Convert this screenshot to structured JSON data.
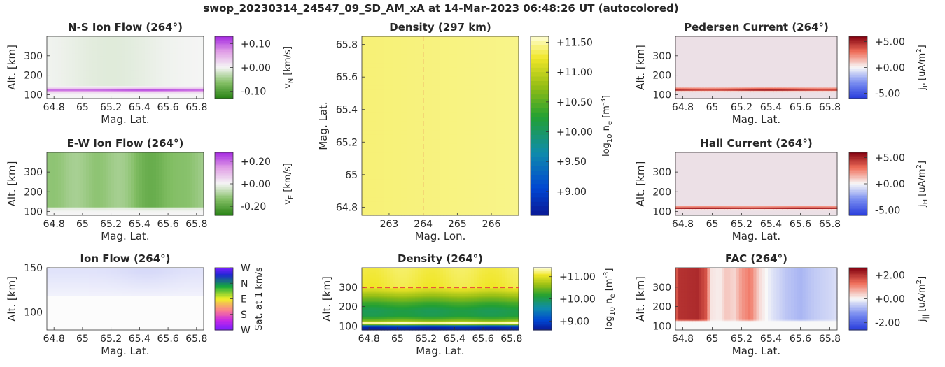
{
  "figure": {
    "suptitle": "swop_20230314_24547_09_SD_AM_xA at 14-Mar-2023 06:48:26 UT (autocolored)"
  },
  "chart_data": [
    {
      "id": "ns-flow",
      "type": "heatmap",
      "title": "N-S Ion Flow (264°)",
      "xlabel": "Mag. Lat.",
      "ylabel": "Alt. [km]",
      "xlim": [
        64.75,
        65.85
      ],
      "ylim": [
        80,
        400
      ],
      "xticks": [
        "64.8",
        "65",
        "65.2",
        "65.4",
        "65.6",
        "65.8"
      ],
      "yticks": [
        "100",
        "200",
        "300"
      ],
      "colormap": "purple-green diverging",
      "colorbar": {
        "label": "v_N [km/s]",
        "clim": [
          -0.13,
          0.13
        ],
        "ticks": [
          "+0.10",
          "+0.00",
          "-0.10"
        ]
      },
      "features": "near-zero flow everywhere, narrow band of +0.10 km/s at 115-130 km"
    },
    {
      "id": "ew-flow",
      "type": "heatmap",
      "title": "E-W Ion Flow (264°)",
      "xlabel": "Mag. Lat.",
      "ylabel": "Alt. [km]",
      "xlim": [
        64.75,
        65.85
      ],
      "ylim": [
        80,
        400
      ],
      "xticks": [
        "64.8",
        "65",
        "65.2",
        "65.4",
        "65.6",
        "65.8"
      ],
      "yticks": [
        "100",
        "200",
        "300"
      ],
      "colormap": "purple-green diverging",
      "colorbar": {
        "label": "v_E [km/s]",
        "clim": [
          -0.28,
          0.28
        ],
        "ticks": [
          "+0.20",
          "+0.00",
          "-0.20"
        ]
      },
      "features": "westward flow about -0.15 km/s above 115 km, strongest near 65.5"
    },
    {
      "id": "ion-flow",
      "type": "heatmap",
      "title": "Ion Flow (264°)",
      "xlabel": "Mag. Lat.",
      "ylabel": "Alt. [km]",
      "xlim": [
        64.75,
        65.85
      ],
      "ylim": [
        80,
        150
      ],
      "xticks": [
        "64.8",
        "65",
        "65.2",
        "65.4",
        "65.6",
        "65.8"
      ],
      "yticks": [
        "100",
        "150"
      ],
      "colormap": "cyclic direction",
      "colorbar": {
        "label": "Sat. at 1 km/s",
        "ticks": [
          "W",
          "N",
          "E",
          "S",
          "W"
        ]
      },
      "features": "faint westward (blue) tint above 120 km, white below"
    },
    {
      "id": "density-map",
      "type": "heatmap",
      "title": "Density (297 km)",
      "xlabel": "Mag. Lon.",
      "ylabel": "Mag. Lat.",
      "xlim": [
        262.2,
        266.8
      ],
      "ylim": [
        64.75,
        65.85
      ],
      "xticks": [
        "263",
        "264",
        "265",
        "266"
      ],
      "yticks": [
        "64.8",
        "65",
        "65.2",
        "65.4",
        "65.6",
        "65.8"
      ],
      "colormap": "parula-like",
      "colorbar": {
        "label": "log_10 n_e [m^-3]",
        "clim": [
          8.6,
          11.6
        ],
        "ticks": [
          "+11.50",
          "+11.00",
          "+10.50",
          "+10.00",
          "+9.50",
          "+9.00"
        ]
      },
      "value": 11.4,
      "cut_line": {
        "axis": "x",
        "value": 264
      }
    },
    {
      "id": "density-profile",
      "type": "heatmap",
      "title": "Density (264°)",
      "xlabel": "Mag. Lat.",
      "ylabel": "Alt. [km]",
      "xlim": [
        64.75,
        65.85
      ],
      "ylim": [
        80,
        400
      ],
      "xticks": [
        "64.8",
        "65",
        "65.2",
        "65.4",
        "65.6",
        "65.8"
      ],
      "yticks": [
        "100",
        "200",
        "300"
      ],
      "colormap": "parula-like",
      "colorbar": {
        "label": "log_10 n_e [m^-3]",
        "clim": [
          8.6,
          11.4
        ],
        "ticks": [
          "+11.00",
          "+10.00",
          "+9.00"
        ]
      },
      "altitude_profile": [
        [
          80,
          8.6
        ],
        [
          95,
          8.8
        ],
        [
          100,
          9.3
        ],
        [
          105,
          10.1
        ],
        [
          115,
          11.4
        ],
        [
          125,
          10.6
        ],
        [
          150,
          10.05
        ],
        [
          180,
          10.0
        ],
        [
          220,
          10.3
        ],
        [
          270,
          10.8
        ],
        [
          300,
          11.1
        ],
        [
          400,
          11.15
        ]
      ],
      "cut_line": {
        "axis": "y",
        "value": 297
      }
    },
    {
      "id": "pedersen",
      "type": "heatmap",
      "title": "Pedersen Current (264°)",
      "xlabel": "Mag. Lat.",
      "ylabel": "Alt. [km]",
      "xlim": [
        64.75,
        65.85
      ],
      "ylim": [
        80,
        400
      ],
      "xticks": [
        "64.8",
        "65",
        "65.2",
        "65.4",
        "65.6",
        "65.8"
      ],
      "yticks": [
        "100",
        "200",
        "300"
      ],
      "colormap": "blue-white-red",
      "colorbar": {
        "label": "j_P [uA/m^2]",
        "clim": [
          -6,
          6
        ],
        "ticks": [
          "+5.00",
          "+0.00",
          "-5.00"
        ]
      },
      "features": "thin positive layer at about 120-130 km"
    },
    {
      "id": "hall",
      "type": "heatmap",
      "title": "Hall Current (264°)",
      "xlabel": "Mag. Lat.",
      "ylabel": "Alt. [km]",
      "xlim": [
        64.75,
        65.85
      ],
      "ylim": [
        80,
        400
      ],
      "xticks": [
        "64.8",
        "65",
        "65.2",
        "65.4",
        "65.6",
        "65.8"
      ],
      "yticks": [
        "100",
        "200",
        "300"
      ],
      "colormap": "blue-white-red",
      "colorbar": {
        "label": "j_H [uA/m^2]",
        "clim": [
          -6,
          6
        ],
        "ticks": [
          "+5.00",
          "+0.00",
          "-5.00"
        ]
      },
      "features": "thin positive layer at about 115-125 km"
    },
    {
      "id": "fac",
      "type": "heatmap",
      "title": "FAC (264°)",
      "xlabel": "Mag. Lat.",
      "ylabel": "Alt. [km]",
      "xlim": [
        64.75,
        65.85
      ],
      "ylim": [
        80,
        400
      ],
      "xticks": [
        "64.8",
        "65",
        "65.2",
        "65.4",
        "65.6",
        "65.8"
      ],
      "yticks": [
        "100",
        "200",
        "300"
      ],
      "colormap": "blue-white-red",
      "colorbar": {
        "label": "j_|| [uA/m^2]",
        "clim": [
          -2.6,
          2.6
        ],
        "ticks": [
          "+2.00",
          "+0.00",
          "-2.00"
        ]
      },
      "latitude_profile": [
        [
          64.75,
          1.2
        ],
        [
          64.77,
          2.0
        ],
        [
          64.9,
          2.1
        ],
        [
          64.96,
          1.6
        ],
        [
          64.99,
          0.2
        ],
        [
          65.05,
          0.1
        ],
        [
          65.1,
          0.5
        ],
        [
          65.15,
          0.3
        ],
        [
          65.2,
          0.9
        ],
        [
          65.26,
          1.2
        ],
        [
          65.32,
          0.3
        ],
        [
          65.4,
          -0.2
        ],
        [
          65.5,
          -0.6
        ],
        [
          65.6,
          -0.8
        ],
        [
          65.7,
          -0.55
        ],
        [
          65.8,
          -0.4
        ],
        [
          65.85,
          -0.3
        ]
      ],
      "features": "upward current (positive) at 64.8-65.0, negative poleward of 65.4, field-aligned above 130 km"
    }
  ]
}
